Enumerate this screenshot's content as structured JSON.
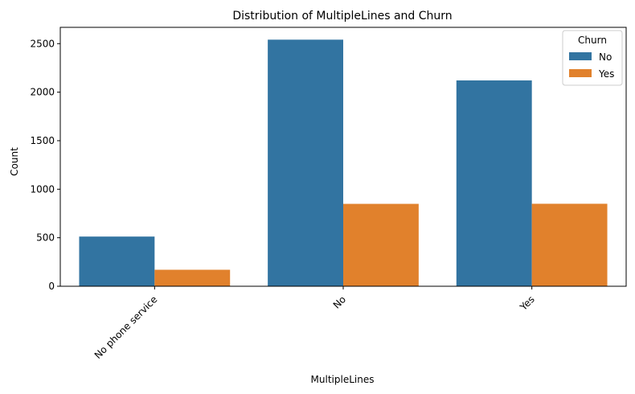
{
  "chart_data": {
    "type": "bar",
    "title": "Distribution of MultipleLines and Churn",
    "xlabel": "MultipleLines",
    "ylabel": "Count",
    "categories": [
      "No phone service",
      "No",
      "Yes"
    ],
    "series": [
      {
        "name": "No",
        "values": [
          512,
          2541,
          2121
        ],
        "color": "#3274a1"
      },
      {
        "name": "Yes",
        "values": [
          170,
          849,
          850
        ],
        "color": "#e1812c"
      }
    ],
    "ylim": [
      0,
      2668
    ],
    "yticks": [
      0,
      500,
      1000,
      1500,
      2000,
      2500
    ],
    "legend": {
      "title": "Churn",
      "placement": "top-right"
    },
    "grid": false
  }
}
